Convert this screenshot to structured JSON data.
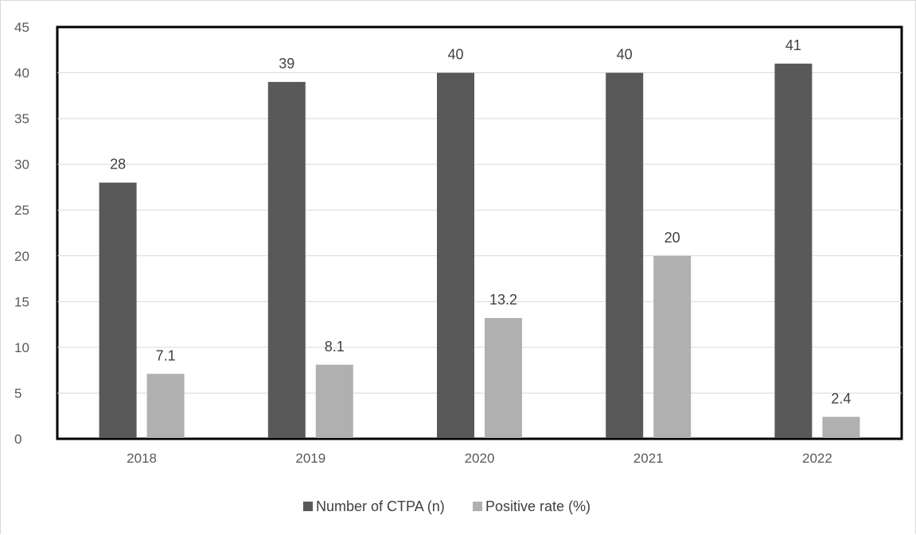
{
  "chart_data": {
    "type": "bar",
    "title": "",
    "xlabel": "",
    "ylabel": "",
    "categories": [
      "2018",
      "2019",
      "2020",
      "2021",
      "2022"
    ],
    "series": [
      {
        "name": "Number of CTPA (n)",
        "color": "#595959",
        "values": [
          28,
          39,
          40,
          40,
          41
        ],
        "labels": [
          "28",
          "39",
          "40",
          "40",
          "41"
        ]
      },
      {
        "name": "Positive rate (%)",
        "color": "#b0b0b0",
        "values": [
          7.1,
          8.1,
          13.2,
          20,
          2.4
        ],
        "labels": [
          "7.1",
          "8.1",
          "13.2",
          "20",
          "2.4"
        ]
      }
    ],
    "ylim": [
      0,
      45
    ],
    "yticks": [
      0,
      5,
      10,
      15,
      20,
      25,
      30,
      35,
      40,
      45
    ],
    "grid": true,
    "legend": "bottom"
  }
}
